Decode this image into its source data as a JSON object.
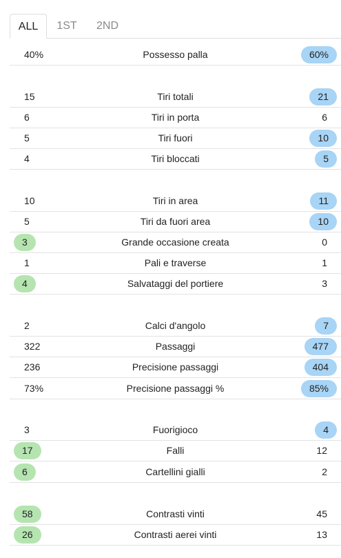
{
  "tabs": [
    {
      "label": "ALL",
      "active": true
    },
    {
      "label": "1ST",
      "active": false
    },
    {
      "label": "2ND",
      "active": false
    }
  ],
  "colors": {
    "home_highlight": "#b5e4b1",
    "away_highlight": "#a8d4f5"
  },
  "stats": [
    {
      "label": "Possesso palla",
      "home": "40%",
      "away": "60%",
      "highlight": "away"
    },
    {
      "label": "Tiri totali",
      "home": "15",
      "away": "21",
      "highlight": "away"
    },
    {
      "label": "Tiri in porta",
      "home": "6",
      "away": "6",
      "highlight": "none"
    },
    {
      "label": "Tiri fuori",
      "home": "5",
      "away": "10",
      "highlight": "away"
    },
    {
      "label": "Tiri bloccati",
      "home": "4",
      "away": "5",
      "highlight": "away"
    },
    {
      "label": "Tiri in area",
      "home": "10",
      "away": "11",
      "highlight": "away"
    },
    {
      "label": "Tiri da fuori area",
      "home": "5",
      "away": "10",
      "highlight": "away"
    },
    {
      "label": "Grande occasione creata",
      "home": "3",
      "away": "0",
      "highlight": "home"
    },
    {
      "label": "Pali e traverse",
      "home": "1",
      "away": "1",
      "highlight": "none"
    },
    {
      "label": "Salvataggi del portiere",
      "home": "4",
      "away": "3",
      "highlight": "home"
    },
    {
      "label": "Calci d'angolo",
      "home": "2",
      "away": "7",
      "highlight": "away"
    },
    {
      "label": "Passaggi",
      "home": "322",
      "away": "477",
      "highlight": "away"
    },
    {
      "label": "Precisione passaggi",
      "home": "236",
      "away": "404",
      "highlight": "away"
    },
    {
      "label": "Precisione passaggi %",
      "home": "73%",
      "away": "85%",
      "highlight": "away"
    },
    {
      "label": "Fuorigioco",
      "home": "3",
      "away": "4",
      "highlight": "away"
    },
    {
      "label": "Falli",
      "home": "17",
      "away": "12",
      "highlight": "home"
    },
    {
      "label": "Cartellini gialli",
      "home": "6",
      "away": "2",
      "highlight": "home"
    },
    {
      "label": "Contrasti vinti",
      "home": "58",
      "away": "45",
      "highlight": "home"
    },
    {
      "label": "Contrasti aerei vinti",
      "home": "26",
      "away": "13",
      "highlight": "home"
    }
  ]
}
